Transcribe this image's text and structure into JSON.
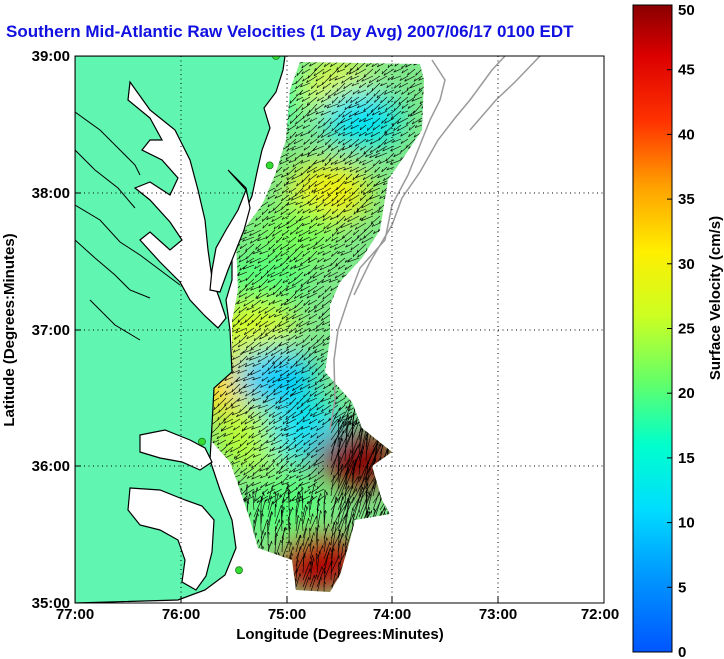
{
  "page": {
    "title": "Southern Mid-Atlantic Raw Velocities (1 Day Avg) 2007/06/17 0100 EDT"
  },
  "colors": {
    "land": "#60f5b0",
    "coast": "#000000",
    "bathymetry": "#9a9a9a",
    "grid": "#000000",
    "station": "#33dd33"
  },
  "chart_data": {
    "type": "heatmap",
    "title": "Southern Mid-Atlantic Raw Velocities (1 Day Avg) 2007/06/17 0100 EDT",
    "xlabel": "Longitude (Degrees:Minutes)",
    "ylabel": "Latitude (Degrees:Minutes)",
    "x_ticks": [
      "77:00",
      "76:00",
      "75:00",
      "74:00",
      "73:00",
      "72:00"
    ],
    "y_ticks": [
      "39:00",
      "38:00",
      "37:00",
      "36:00",
      "35:00"
    ],
    "xlim": [
      -77.0,
      -72.0
    ],
    "ylim": [
      35.0,
      39.0
    ],
    "grid": true,
    "colorbar": {
      "label": "Surface Velocity (cm/s)",
      "min": 0,
      "max": 50,
      "ticks": [
        "0",
        "5",
        "10",
        "15",
        "20",
        "25",
        "30",
        "35",
        "40",
        "45",
        "50"
      ],
      "colormap": "jet"
    },
    "stations": [
      {
        "lon": -75.1,
        "lat": 39.0
      },
      {
        "lon": -75.16,
        "lat": 38.2
      },
      {
        "lon": -75.8,
        "lat": 36.18
      },
      {
        "lon": -75.45,
        "lat": 35.24
      }
    ],
    "speed_regions": [
      {
        "lon": -75.0,
        "lat": 38.75,
        "value": 18
      },
      {
        "lon": -74.5,
        "lat": 38.75,
        "value": 28
      },
      {
        "lon": -74.3,
        "lat": 38.55,
        "value": 12
      },
      {
        "lon": -74.6,
        "lat": 38.0,
        "value": 30
      },
      {
        "lon": -74.9,
        "lat": 37.7,
        "value": 22
      },
      {
        "lon": -75.2,
        "lat": 37.35,
        "value": 20
      },
      {
        "lon": -75.3,
        "lat": 37.0,
        "value": 27
      },
      {
        "lon": -75.6,
        "lat": 36.6,
        "value": 32
      },
      {
        "lon": -75.1,
        "lat": 36.65,
        "value": 10
      },
      {
        "lon": -75.3,
        "lat": 36.2,
        "value": 25
      },
      {
        "lon": -74.8,
        "lat": 36.25,
        "value": 12
      },
      {
        "lon": -74.35,
        "lat": 36.05,
        "value": 50
      },
      {
        "lon": -75.0,
        "lat": 35.7,
        "value": 20
      },
      {
        "lon": -74.7,
        "lat": 35.3,
        "value": 48
      }
    ]
  }
}
